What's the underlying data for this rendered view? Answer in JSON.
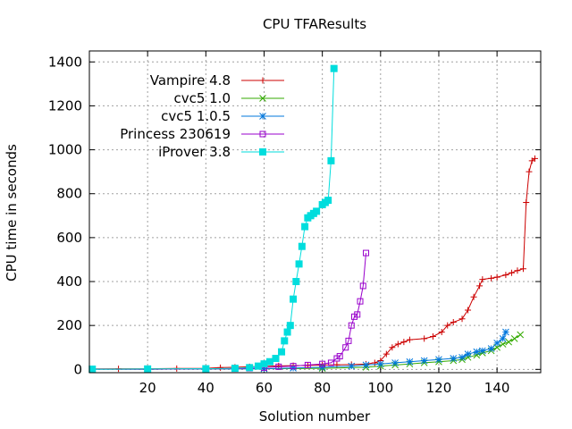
{
  "chart_data": {
    "type": "line",
    "title": "CPU TFAResults",
    "xlabel": "Solution number",
    "ylabel": "CPU time in seconds",
    "xlim": [
      0,
      155
    ],
    "ylim": [
      -15,
      1450
    ],
    "x_ticks": [
      20,
      40,
      60,
      80,
      100,
      120,
      140
    ],
    "y_ticks": [
      0,
      200,
      400,
      600,
      800,
      1000,
      1200,
      1400
    ],
    "grid": true,
    "legend_position": "top-left",
    "series": [
      {
        "name": "Vampire 4.8",
        "color": "#cc0000",
        "marker": "plus",
        "points": [
          [
            1,
            2
          ],
          [
            10,
            3
          ],
          [
            20,
            3
          ],
          [
            30,
            4
          ],
          [
            40,
            5
          ],
          [
            45,
            8
          ],
          [
            50,
            10
          ],
          [
            55,
            12
          ],
          [
            60,
            14
          ],
          [
            65,
            16
          ],
          [
            70,
            17
          ],
          [
            75,
            18
          ],
          [
            80,
            20
          ],
          [
            85,
            21
          ],
          [
            90,
            22
          ],
          [
            95,
            24
          ],
          [
            98,
            30
          ],
          [
            100,
            40
          ],
          [
            102,
            70
          ],
          [
            104,
            100
          ],
          [
            106,
            115
          ],
          [
            108,
            125
          ],
          [
            110,
            135
          ],
          [
            115,
            140
          ],
          [
            118,
            150
          ],
          [
            121,
            170
          ],
          [
            123,
            200
          ],
          [
            125,
            215
          ],
          [
            128,
            230
          ],
          [
            130,
            270
          ],
          [
            132,
            330
          ],
          [
            134,
            380
          ],
          [
            135,
            410
          ],
          [
            138,
            415
          ],
          [
            140,
            420
          ],
          [
            143,
            430
          ],
          [
            145,
            440
          ],
          [
            147,
            450
          ],
          [
            149,
            458
          ],
          [
            150,
            760
          ],
          [
            151,
            900
          ],
          [
            152,
            950
          ],
          [
            153,
            960
          ]
        ]
      },
      {
        "name": "cvc5 1.0",
        "color": "#33aa00",
        "marker": "x",
        "points": [
          [
            1,
            1
          ],
          [
            20,
            1
          ],
          [
            40,
            2
          ],
          [
            60,
            3
          ],
          [
            80,
            5
          ],
          [
            95,
            10
          ],
          [
            100,
            15
          ],
          [
            105,
            20
          ],
          [
            110,
            25
          ],
          [
            115,
            30
          ],
          [
            120,
            35
          ],
          [
            125,
            40
          ],
          [
            128,
            45
          ],
          [
            130,
            55
          ],
          [
            133,
            65
          ],
          [
            135,
            75
          ],
          [
            138,
            85
          ],
          [
            140,
            100
          ],
          [
            142,
            115
          ],
          [
            144,
            125
          ],
          [
            146,
            140
          ],
          [
            148,
            158
          ]
        ]
      },
      {
        "name": "cvc5 1.0.5",
        "color": "#0077dd",
        "marker": "star",
        "points": [
          [
            1,
            1
          ],
          [
            20,
            1
          ],
          [
            40,
            2
          ],
          [
            60,
            3
          ],
          [
            70,
            6
          ],
          [
            80,
            10
          ],
          [
            90,
            15
          ],
          [
            95,
            20
          ],
          [
            100,
            25
          ],
          [
            105,
            30
          ],
          [
            110,
            35
          ],
          [
            115,
            40
          ],
          [
            120,
            45
          ],
          [
            125,
            50
          ],
          [
            128,
            55
          ],
          [
            130,
            70
          ],
          [
            133,
            80
          ],
          [
            135,
            85
          ],
          [
            138,
            95
          ],
          [
            140,
            120
          ],
          [
            142,
            140
          ],
          [
            143,
            170
          ]
        ]
      },
      {
        "name": "Princess 230619",
        "color": "#9900cc",
        "marker": "open-square",
        "points": [
          [
            1,
            1
          ],
          [
            20,
            1
          ],
          [
            40,
            2
          ],
          [
            50,
            3
          ],
          [
            55,
            5
          ],
          [
            60,
            8
          ],
          [
            65,
            12
          ],
          [
            70,
            15
          ],
          [
            75,
            20
          ],
          [
            80,
            25
          ],
          [
            83,
            30
          ],
          [
            85,
            50
          ],
          [
            86,
            60
          ],
          [
            88,
            100
          ],
          [
            89,
            130
          ],
          [
            90,
            200
          ],
          [
            91,
            240
          ],
          [
            92,
            250
          ],
          [
            93,
            310
          ],
          [
            94,
            380
          ],
          [
            95,
            530
          ]
        ]
      },
      {
        "name": "iProver 3.8",
        "color": "#00dddd",
        "marker": "filled-square",
        "points": [
          [
            1,
            1
          ],
          [
            20,
            2
          ],
          [
            40,
            3
          ],
          [
            50,
            5
          ],
          [
            55,
            8
          ],
          [
            58,
            15
          ],
          [
            60,
            25
          ],
          [
            62,
            35
          ],
          [
            64,
            50
          ],
          [
            66,
            80
          ],
          [
            67,
            130
          ],
          [
            68,
            170
          ],
          [
            69,
            200
          ],
          [
            70,
            320
          ],
          [
            71,
            400
          ],
          [
            72,
            480
          ],
          [
            73,
            560
          ],
          [
            74,
            650
          ],
          [
            75,
            690
          ],
          [
            76,
            700
          ],
          [
            77,
            710
          ],
          [
            78,
            720
          ],
          [
            80,
            750
          ],
          [
            81,
            760
          ],
          [
            82,
            770
          ],
          [
            83,
            950
          ],
          [
            84,
            1370
          ]
        ]
      }
    ]
  }
}
